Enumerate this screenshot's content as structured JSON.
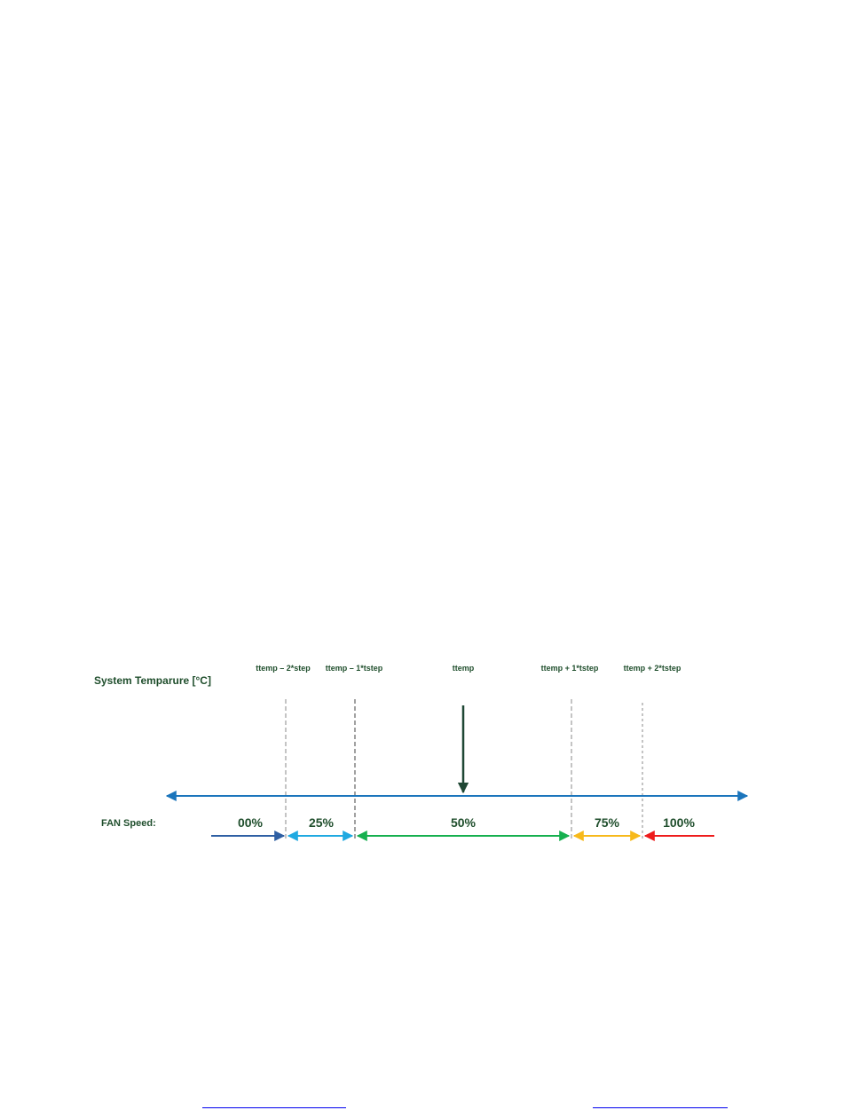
{
  "diagram": {
    "axis_title": "System Temparure [°C]",
    "fan_label": "FAN Speed:",
    "thresholds": [
      {
        "label": "ttemp – 2*step"
      },
      {
        "label": "ttemp – 1*tstep"
      },
      {
        "label": "ttemp"
      },
      {
        "label": "ttemp + 1*tstep"
      },
      {
        "label": "ttemp + 2*tstep"
      }
    ],
    "speed_zones": [
      {
        "label": "00%",
        "color": "#2e5fa3"
      },
      {
        "label": "25%",
        "color": "#1fa9e1"
      },
      {
        "label": "50%",
        "color": "#16b04f"
      },
      {
        "label": "75%",
        "color": "#f7b91b"
      },
      {
        "label": "100%",
        "color": "#ee1c1c"
      }
    ],
    "colors": {
      "axis": "#1b75bc",
      "pointer": "#1f4734",
      "dashed": "#8a8a8a",
      "text": "#1f4e2c"
    }
  },
  "footer": {
    "links": [
      "",
      ""
    ]
  }
}
